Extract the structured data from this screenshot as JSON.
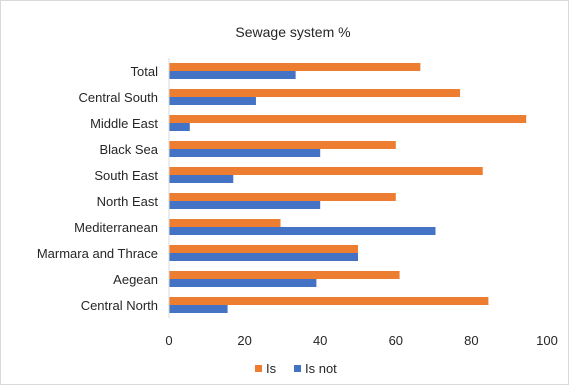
{
  "chart_data": {
    "type": "bar",
    "orientation": "horizontal",
    "title": "Sewage system %",
    "categories": [
      "Central North",
      "Aegean",
      "Marmara and Thrace",
      "Mediterranean",
      "North East",
      "South East",
      "Black Sea",
      "Middle East",
      "Central South",
      "Total"
    ],
    "series": [
      {
        "name": "Is",
        "color": "#ED7D31",
        "values": [
          84.5,
          61,
          50,
          29.5,
          60,
          83,
          60,
          94.5,
          77,
          66.5
        ]
      },
      {
        "name": "Is not",
        "color": "#4472C4",
        "values": [
          15.5,
          39,
          50,
          70.5,
          40,
          17,
          40,
          5.5,
          23,
          33.5
        ]
      }
    ],
    "xlim": [
      0,
      100
    ],
    "xticks": [
      0,
      20,
      40,
      60,
      80,
      100
    ],
    "xlabel": "",
    "ylabel": "",
    "grid": false,
    "legend": "bottom"
  }
}
